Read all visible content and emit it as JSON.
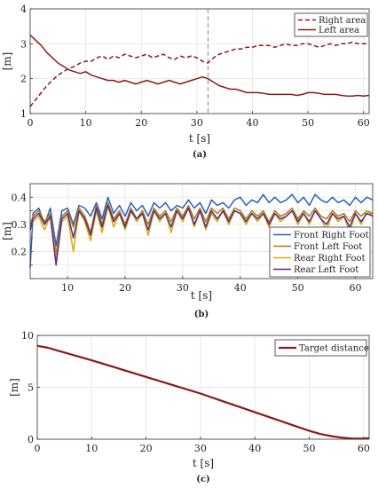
{
  "chart_data": [
    {
      "panel_label": "(a)",
      "type": "line",
      "xlabel": "t [s]",
      "ylabel": "[m]",
      "xlim": [
        0,
        61
      ],
      "ylim": [
        1,
        4
      ],
      "xticks": [
        0,
        10,
        20,
        30,
        40,
        50,
        60
      ],
      "yticks": [
        1,
        2,
        3,
        4
      ],
      "grid": true,
      "legend_position": "top-right",
      "vline": {
        "x": 32,
        "style": "dashed"
      },
      "series": [
        {
          "name": "Right area",
          "color": "#8b1a1a",
          "style": "dashed",
          "x": [
            0,
            1,
            2,
            3,
            4,
            5,
            6,
            7,
            8,
            9,
            10,
            11,
            12,
            13,
            14,
            15,
            16,
            17,
            18,
            19,
            20,
            21,
            22,
            23,
            24,
            25,
            26,
            27,
            28,
            29,
            30,
            31,
            32,
            33,
            34,
            35,
            36,
            37,
            38,
            39,
            40,
            41,
            42,
            43,
            44,
            45,
            46,
            47,
            48,
            49,
            50,
            51,
            52,
            53,
            54,
            55,
            56,
            57,
            58,
            59,
            60,
            61
          ],
          "y": [
            1.2,
            1.4,
            1.6,
            1.8,
            1.95,
            2.1,
            2.2,
            2.3,
            2.35,
            2.45,
            2.5,
            2.5,
            2.6,
            2.65,
            2.55,
            2.65,
            2.6,
            2.7,
            2.65,
            2.6,
            2.65,
            2.7,
            2.6,
            2.65,
            2.7,
            2.6,
            2.55,
            2.65,
            2.6,
            2.65,
            2.6,
            2.5,
            2.45,
            2.6,
            2.7,
            2.75,
            2.8,
            2.85,
            2.85,
            2.9,
            2.9,
            2.95,
            2.95,
            2.95,
            2.9,
            2.95,
            3.0,
            2.95,
            2.95,
            3.0,
            3.0,
            2.95,
            2.9,
            2.95,
            3.0,
            2.95,
            3.0,
            3.0,
            3.05,
            3.0,
            3.0,
            3.0
          ]
        },
        {
          "name": "Left area",
          "color": "#8b1a1a",
          "style": "solid",
          "x": [
            0,
            1,
            2,
            3,
            4,
            5,
            6,
            7,
            8,
            9,
            10,
            11,
            12,
            13,
            14,
            15,
            16,
            17,
            18,
            19,
            20,
            21,
            22,
            23,
            24,
            25,
            26,
            27,
            28,
            29,
            30,
            31,
            32,
            33,
            34,
            35,
            36,
            37,
            38,
            39,
            40,
            41,
            42,
            43,
            44,
            45,
            46,
            47,
            48,
            49,
            50,
            51,
            52,
            53,
            54,
            55,
            56,
            57,
            58,
            59,
            60,
            61
          ],
          "y": [
            3.25,
            3.1,
            2.95,
            2.75,
            2.6,
            2.45,
            2.35,
            2.25,
            2.2,
            2.15,
            2.2,
            2.1,
            2.05,
            2.0,
            1.95,
            1.95,
            1.9,
            1.95,
            1.9,
            1.85,
            1.9,
            1.95,
            1.9,
            1.85,
            1.9,
            1.95,
            1.9,
            1.85,
            1.9,
            1.95,
            2.0,
            2.05,
            2.0,
            1.9,
            1.8,
            1.75,
            1.7,
            1.7,
            1.65,
            1.6,
            1.6,
            1.6,
            1.58,
            1.55,
            1.55,
            1.55,
            1.55,
            1.55,
            1.52,
            1.55,
            1.6,
            1.6,
            1.58,
            1.55,
            1.55,
            1.55,
            1.52,
            1.5,
            1.5,
            1.52,
            1.5,
            1.52
          ]
        }
      ]
    },
    {
      "panel_label": "(b)",
      "type": "line",
      "xlabel": "t [s]",
      "ylabel": "[m]",
      "xlim": [
        3.5,
        63
      ],
      "ylim": [
        0.1,
        0.45
      ],
      "xticks": [
        10,
        20,
        30,
        40,
        50,
        60
      ],
      "yticks": [
        0.1,
        0.15,
        0.2,
        0.25,
        0.3,
        0.35,
        0.4
      ],
      "ytick_labels": [
        "",
        "",
        "0.2",
        "",
        "0.3",
        "",
        "0.4"
      ],
      "grid": true,
      "legend_position": "bottom-right",
      "series": [
        {
          "name": "Front Right Foot",
          "color": "#2a5fb8",
          "x": [
            3.5,
            4,
            5,
            6,
            7,
            8,
            9,
            10,
            11,
            12,
            13,
            14,
            15,
            16,
            17,
            18,
            19,
            20,
            21,
            22,
            23,
            24,
            25,
            26,
            27,
            28,
            29,
            30,
            31,
            32,
            33,
            34,
            35,
            36,
            37,
            38,
            39,
            40,
            41,
            42,
            43,
            44,
            45,
            46,
            47,
            48,
            49,
            50,
            51,
            52,
            53,
            54,
            55,
            56,
            57,
            58,
            59,
            60,
            61,
            62,
            63
          ],
          "y": [
            0.14,
            0.34,
            0.36,
            0.3,
            0.36,
            0.22,
            0.35,
            0.36,
            0.3,
            0.37,
            0.36,
            0.33,
            0.38,
            0.32,
            0.4,
            0.34,
            0.37,
            0.33,
            0.38,
            0.35,
            0.37,
            0.33,
            0.38,
            0.36,
            0.38,
            0.35,
            0.37,
            0.36,
            0.39,
            0.36,
            0.38,
            0.34,
            0.39,
            0.37,
            0.38,
            0.36,
            0.39,
            0.4,
            0.37,
            0.39,
            0.38,
            0.41,
            0.38,
            0.4,
            0.38,
            0.39,
            0.41,
            0.38,
            0.4,
            0.37,
            0.41,
            0.39,
            0.38,
            0.4,
            0.38,
            0.39,
            0.37,
            0.4,
            0.38,
            0.4,
            0.39
          ]
        },
        {
          "name": "Front Left Foot",
          "color": "#b07a12",
          "x": [
            3.5,
            4,
            5,
            6,
            7,
            8,
            9,
            10,
            11,
            12,
            13,
            14,
            15,
            16,
            17,
            18,
            19,
            20,
            21,
            22,
            23,
            24,
            25,
            26,
            27,
            28,
            29,
            30,
            31,
            32,
            33,
            34,
            35,
            36,
            37,
            38,
            39,
            40,
            41,
            42,
            43,
            44,
            45,
            46,
            47,
            48,
            49,
            50,
            51,
            52,
            53,
            54,
            55,
            56,
            57,
            58,
            59,
            60,
            61,
            62,
            63
          ],
          "y": [
            0.3,
            0.33,
            0.35,
            0.31,
            0.34,
            0.19,
            0.33,
            0.35,
            0.29,
            0.36,
            0.33,
            0.27,
            0.37,
            0.3,
            0.38,
            0.32,
            0.35,
            0.3,
            0.36,
            0.32,
            0.35,
            0.3,
            0.36,
            0.33,
            0.35,
            0.31,
            0.36,
            0.33,
            0.37,
            0.32,
            0.36,
            0.31,
            0.36,
            0.34,
            0.36,
            0.32,
            0.36,
            0.35,
            0.32,
            0.35,
            0.33,
            0.35,
            0.31,
            0.35,
            0.33,
            0.34,
            0.36,
            0.32,
            0.35,
            0.33,
            0.36,
            0.33,
            0.32,
            0.35,
            0.33,
            0.34,
            0.31,
            0.35,
            0.33,
            0.35,
            0.34
          ]
        },
        {
          "name": "Rear Right Foot",
          "color": "#d6aa0a",
          "x": [
            3.5,
            4,
            5,
            6,
            7,
            8,
            9,
            10,
            11,
            12,
            13,
            14,
            15,
            16,
            17,
            18,
            19,
            20,
            21,
            22,
            23,
            24,
            25,
            26,
            27,
            28,
            29,
            30,
            31,
            32,
            33,
            34,
            35,
            36,
            37,
            38,
            39,
            40,
            41,
            42,
            43,
            44,
            45,
            46,
            47,
            48,
            49,
            50,
            51,
            52,
            53,
            54,
            55,
            56,
            57,
            58,
            59,
            60,
            61,
            62,
            63
          ],
          "y": [
            0.29,
            0.31,
            0.33,
            0.28,
            0.33,
            0.17,
            0.31,
            0.33,
            0.2,
            0.35,
            0.31,
            0.24,
            0.35,
            0.27,
            0.37,
            0.29,
            0.34,
            0.28,
            0.35,
            0.31,
            0.34,
            0.26,
            0.35,
            0.31,
            0.34,
            0.27,
            0.35,
            0.31,
            0.36,
            0.29,
            0.35,
            0.28,
            0.34,
            0.31,
            0.35,
            0.3,
            0.35,
            0.34,
            0.3,
            0.34,
            0.31,
            0.34,
            0.29,
            0.34,
            0.31,
            0.33,
            0.35,
            0.3,
            0.34,
            0.3,
            0.35,
            0.32,
            0.28,
            0.34,
            0.31,
            0.33,
            0.27,
            0.34,
            0.3,
            0.35,
            0.33
          ]
        },
        {
          "name": "Rear Left Foot",
          "color": "#5a2a8a",
          "x": [
            3.5,
            4,
            5,
            6,
            7,
            8,
            9,
            10,
            11,
            12,
            13,
            14,
            15,
            16,
            17,
            18,
            19,
            20,
            21,
            22,
            23,
            24,
            25,
            26,
            27,
            28,
            29,
            30,
            31,
            32,
            33,
            34,
            35,
            36,
            37,
            38,
            39,
            40,
            41,
            42,
            43,
            44,
            45,
            46,
            47,
            48,
            49,
            50,
            51,
            52,
            53,
            54,
            55,
            56,
            57,
            58,
            59,
            60,
            61,
            62,
            63
          ],
          "y": [
            0.28,
            0.32,
            0.34,
            0.3,
            0.33,
            0.15,
            0.32,
            0.34,
            0.25,
            0.35,
            0.32,
            0.26,
            0.36,
            0.29,
            0.37,
            0.31,
            0.34,
            0.29,
            0.35,
            0.32,
            0.34,
            0.28,
            0.35,
            0.32,
            0.34,
            0.29,
            0.35,
            0.32,
            0.36,
            0.3,
            0.35,
            0.29,
            0.35,
            0.32,
            0.35,
            0.31,
            0.35,
            0.34,
            0.31,
            0.34,
            0.32,
            0.34,
            0.3,
            0.34,
            0.32,
            0.33,
            0.35,
            0.31,
            0.34,
            0.31,
            0.35,
            0.32,
            0.3,
            0.34,
            0.32,
            0.33,
            0.29,
            0.34,
            0.31,
            0.34,
            0.33
          ]
        }
      ]
    },
    {
      "panel_label": "(c)",
      "type": "line",
      "xlabel": "t [s]",
      "ylabel": "[m]",
      "xlim": [
        0,
        61
      ],
      "ylim": [
        0,
        10
      ],
      "xticks": [
        0,
        10,
        20,
        30,
        40,
        50,
        60
      ],
      "yticks": [
        0,
        5,
        10
      ],
      "grid": true,
      "legend_position": "top-right",
      "series": [
        {
          "name": "Target distance",
          "color": "#8b1a1a",
          "style": "solid",
          "x": [
            0,
            2,
            4,
            6,
            8,
            10,
            15,
            20,
            25,
            30,
            35,
            40,
            45,
            50,
            52,
            54,
            56,
            58,
            60,
            61
          ],
          "y": [
            9.0,
            8.8,
            8.5,
            8.2,
            7.9,
            7.6,
            6.8,
            6.0,
            5.2,
            4.4,
            3.5,
            2.6,
            1.7,
            0.8,
            0.5,
            0.3,
            0.15,
            0.05,
            0.05,
            0.1
          ]
        }
      ]
    }
  ]
}
